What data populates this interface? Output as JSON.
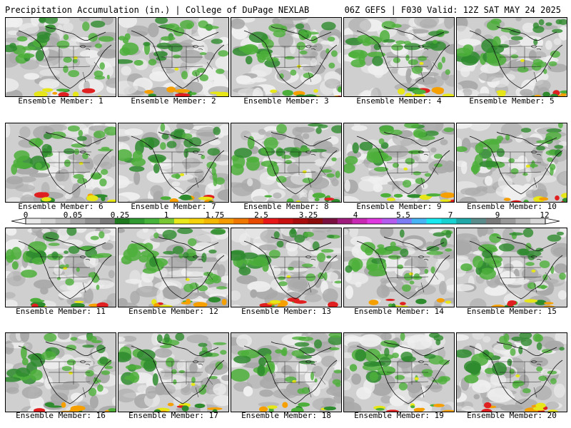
{
  "header": {
    "title": "Precipitation Accumulation (in.) | College of DuPage NEXLAB",
    "run_info": "06Z GEFS | F030 Valid: 12Z SAT MAY 24 2025"
  },
  "panels": [
    {
      "label": "Ensemble Member: 1"
    },
    {
      "label": "Ensemble Member: 2"
    },
    {
      "label": "Ensemble Member: 3"
    },
    {
      "label": "Ensemble Member: 4"
    },
    {
      "label": "Ensemble Member: 5"
    },
    {
      "label": "Ensemble Member: 6"
    },
    {
      "label": "Ensemble Member: 7"
    },
    {
      "label": "Ensemble Member: 8"
    },
    {
      "label": "Ensemble Member: 9"
    },
    {
      "label": "Ensemble Member: 10"
    },
    {
      "label": "Ensemble Member: 11"
    },
    {
      "label": "Ensemble Member: 12"
    },
    {
      "label": "Ensemble Member: 13"
    },
    {
      "label": "Ensemble Member: 14"
    },
    {
      "label": "Ensemble Member: 15"
    },
    {
      "label": "Ensemble Member: 16"
    },
    {
      "label": "Ensemble Member: 17"
    },
    {
      "label": "Ensemble Member: 18"
    },
    {
      "label": "Ensemble Member: 19"
    },
    {
      "label": "Ensemble Member: 20"
    }
  ],
  "colorbar": {
    "tick_labels": [
      "0",
      "0.05",
      "0.25",
      "1",
      "1.75",
      "2.5",
      "3.25",
      "4",
      "5.5",
      "7",
      "9",
      "12"
    ],
    "colors": [
      "#e8e8e8",
      "#d2d2d2",
      "#bcbcbc",
      "#a6a6a6",
      "#909090",
      "#7a7a7a",
      "#1f7a1f",
      "#2f9a2f",
      "#46b33b",
      "#79c833",
      "#e8e81a",
      "#f5d20a",
      "#f5b800",
      "#f59a00",
      "#f07800",
      "#e84a00",
      "#e81818",
      "#c81010",
      "#a80c0c",
      "#8c0c0c",
      "#7a1040",
      "#a01c7c",
      "#c828b4",
      "#e038e0",
      "#b45cf0",
      "#7c7cf5",
      "#46b4f5",
      "#18e8f0",
      "#18d2d2",
      "#20a8a8",
      "#5a8c8c",
      "#7a7a7a",
      "#9a9a9a",
      "#b8b8b8",
      "#d8d8d8"
    ]
  },
  "map_colors": {
    "background": "#cfcfcf",
    "light": "#efefef",
    "mid": "#a9a9a9",
    "green_dark": "#2e8b2e",
    "green": "#4caf3a",
    "yellow": "#e6e619",
    "orange": "#f5a000",
    "red": "#e02020",
    "coast": "#111111"
  }
}
